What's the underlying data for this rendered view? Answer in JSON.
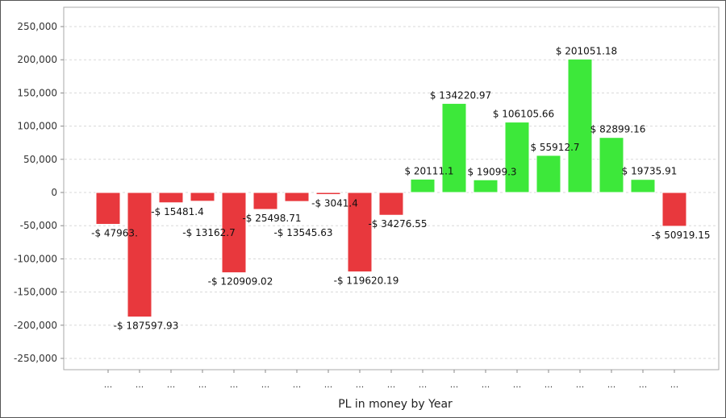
{
  "chart_data": {
    "type": "bar",
    "title": "PL in money by Year",
    "xlabel": "PL in money by Year",
    "ylabel": "",
    "ylim": [
      -250000,
      250000
    ],
    "yticks": [
      250000,
      200000,
      150000,
      100000,
      50000,
      0,
      -50000,
      -100000,
      -150000,
      -200000,
      -250000
    ],
    "ytick_labels": [
      "250,000",
      "200,000",
      "150,000",
      "100,000",
      "50,000",
      "0",
      "-50,000",
      "-100,000",
      "-150,000",
      "-200,000",
      "-250,000"
    ],
    "grid": true,
    "categories": [
      "...",
      "...",
      "...",
      "...",
      "...",
      "...",
      "...",
      "...",
      "...",
      "...",
      "...",
      "...",
      "...",
      "...",
      "...",
      "...",
      "...",
      "...",
      "..."
    ],
    "values": [
      -47963,
      -187597.93,
      -15481.4,
      -13162.7,
      -120909.02,
      -25498.71,
      -13545.63,
      -3041.4,
      -119620.19,
      -34276.55,
      20111.1,
      134220.97,
      19099.3,
      106105.66,
      55912.7,
      201051.18,
      82899.16,
      19735.91,
      -50919.15
    ],
    "data_labels": [
      "-$ 47963.",
      "-$ 187597.93",
      "-$ 15481.4",
      "-$ 13162.7",
      "-$ 120909.02",
      "-$ 25498.71",
      "-$ 13545.63",
      "-$ 3041.4",
      "-$ 119620.19",
      "-$ 34276.55",
      "$ 20111.1",
      "$ 134220.97",
      "$ 19099.3",
      "$ 106105.66",
      "$ 55912.7",
      "$ 201051.18",
      "$ 82899.16",
      "$ 19735.91",
      "-$ 50919.15"
    ],
    "colors": {
      "positive": "#3de83a",
      "negative": "#e8383d"
    }
  }
}
